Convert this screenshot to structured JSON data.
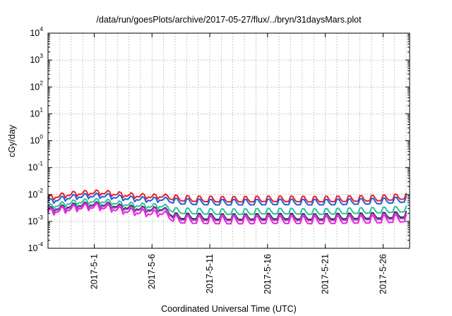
{
  "chart_data": {
    "type": "line",
    "title": "/data/run/goesPlots/archive/2017-05-27/flux/../bryn/31daysMars.plot",
    "xlabel": "Coordinated Universal Time (UTC)",
    "ylabel": "cGy/day",
    "yscale": "log",
    "ylim": [
      0.0001,
      10000
    ],
    "xlim": [
      "2017-04-27",
      "2017-05-28"
    ],
    "grid": true,
    "y_ticks": [
      {
        "base": "10",
        "exp": "-4"
      },
      {
        "base": "10",
        "exp": "-3"
      },
      {
        "base": "10",
        "exp": "-2"
      },
      {
        "base": "10",
        "exp": "-1"
      },
      {
        "base": "10",
        "exp": "0"
      },
      {
        "base": "10",
        "exp": "1"
      },
      {
        "base": "10",
        "exp": "2"
      },
      {
        "base": "10",
        "exp": "3"
      },
      {
        "base": "10",
        "exp": "4"
      }
    ],
    "x_tick_labels": [
      "2017-5-1",
      "2017-5-6",
      "2017-5-11",
      "2017-5-16",
      "2017-5-21",
      "2017-5-26"
    ],
    "x_tick_dates": [
      "2017-05-01",
      "2017-05-06",
      "2017-05-11",
      "2017-05-16",
      "2017-05-21",
      "2017-05-26"
    ],
    "series": [
      {
        "color": "#e8202a",
        "x": [
          "2017-04-27",
          "2017-04-28",
          "2017-04-29",
          "2017-04-30",
          "2017-05-01",
          "2017-05-02",
          "2017-05-03",
          "2017-05-04",
          "2017-05-05",
          "2017-05-06",
          "2017-05-07",
          "2017-05-08",
          "2017-05-10",
          "2017-05-12",
          "2017-05-14",
          "2017-05-16",
          "2017-05-18",
          "2017-05-20",
          "2017-05-22",
          "2017-05-24",
          "2017-05-26",
          "2017-05-28"
        ],
        "values": [
          0.0075,
          0.009,
          0.0105,
          0.0115,
          0.012,
          0.0118,
          0.0105,
          0.0095,
          0.009,
          0.0085,
          0.009,
          0.0065,
          0.006,
          0.0058,
          0.0058,
          0.006,
          0.006,
          0.0058,
          0.006,
          0.0062,
          0.0065,
          0.0075
        ]
      },
      {
        "color": "#1f5fdb",
        "x": [
          "2017-04-27",
          "2017-04-28",
          "2017-04-29",
          "2017-04-30",
          "2017-05-01",
          "2017-05-02",
          "2017-05-03",
          "2017-05-04",
          "2017-05-05",
          "2017-05-06",
          "2017-05-07",
          "2017-05-08",
          "2017-05-10",
          "2017-05-12",
          "2017-05-14",
          "2017-05-16",
          "2017-05-18",
          "2017-05-20",
          "2017-05-22",
          "2017-05-24",
          "2017-05-26",
          "2017-05-28"
        ],
        "values": [
          0.0055,
          0.0068,
          0.008,
          0.0088,
          0.0092,
          0.009,
          0.008,
          0.0072,
          0.0068,
          0.0064,
          0.0068,
          0.005,
          0.0046,
          0.0045,
          0.0045,
          0.0046,
          0.0046,
          0.0045,
          0.0046,
          0.0048,
          0.005,
          0.0058
        ]
      },
      {
        "color": "#2bbf9e",
        "x": [
          "2017-04-27",
          "2017-04-28",
          "2017-04-29",
          "2017-04-30",
          "2017-05-01",
          "2017-05-02",
          "2017-05-03",
          "2017-05-04",
          "2017-05-05",
          "2017-05-06",
          "2017-05-07",
          "2017-05-08",
          "2017-05-10",
          "2017-05-12",
          "2017-05-14",
          "2017-05-16",
          "2017-05-18",
          "2017-05-20",
          "2017-05-22",
          "2017-05-24",
          "2017-05-26",
          "2017-05-28"
        ],
        "values": [
          0.0035,
          0.0042,
          0.005,
          0.0055,
          0.0058,
          0.0056,
          0.0048,
          0.0043,
          0.004,
          0.0037,
          0.0039,
          0.0022,
          0.0021,
          0.002,
          0.002,
          0.0021,
          0.0021,
          0.002,
          0.0021,
          0.0022,
          0.0023,
          0.0025
        ]
      },
      {
        "color": "#2a2a2a",
        "x": [
          "2017-04-27",
          "2017-04-28",
          "2017-04-29",
          "2017-04-30",
          "2017-05-01",
          "2017-05-02",
          "2017-05-03",
          "2017-05-04",
          "2017-05-05",
          "2017-05-06",
          "2017-05-07",
          "2017-05-08",
          "2017-05-10",
          "2017-05-12",
          "2017-05-14",
          "2017-05-16",
          "2017-05-18",
          "2017-05-20",
          "2017-05-22",
          "2017-05-24",
          "2017-05-26",
          "2017-05-28"
        ],
        "values": [
          0.0028,
          0.0032,
          0.0038,
          0.0042,
          0.0044,
          0.0043,
          0.0037,
          0.0033,
          0.003,
          0.0028,
          0.003,
          0.0014,
          0.00135,
          0.0013,
          0.0013,
          0.00135,
          0.00135,
          0.0013,
          0.00135,
          0.0014,
          0.00145,
          0.0016
        ]
      },
      {
        "color": "#9a4fd0",
        "x": [
          "2017-04-27",
          "2017-04-28",
          "2017-04-29",
          "2017-04-30",
          "2017-05-01",
          "2017-05-02",
          "2017-05-03",
          "2017-05-04",
          "2017-05-05",
          "2017-05-06",
          "2017-05-07",
          "2017-05-08",
          "2017-05-10",
          "2017-05-12",
          "2017-05-14",
          "2017-05-16",
          "2017-05-18",
          "2017-05-20",
          "2017-05-22",
          "2017-05-24",
          "2017-05-26",
          "2017-05-28"
        ],
        "values": [
          0.0026,
          0.003,
          0.0035,
          0.0039,
          0.0041,
          0.004,
          0.0034,
          0.003,
          0.0028,
          0.0026,
          0.0028,
          0.00125,
          0.0012,
          0.00118,
          0.00118,
          0.0012,
          0.0012,
          0.00118,
          0.0012,
          0.00125,
          0.0013,
          0.0014
        ]
      },
      {
        "color": "#ee1fe0",
        "x": [
          "2017-04-27",
          "2017-04-28",
          "2017-04-29",
          "2017-04-30",
          "2017-05-01",
          "2017-05-02",
          "2017-05-03",
          "2017-05-04",
          "2017-05-05",
          "2017-05-06",
          "2017-05-07",
          "2017-05-08",
          "2017-05-10",
          "2017-05-12",
          "2017-05-14",
          "2017-05-16",
          "2017-05-18",
          "2017-05-20",
          "2017-05-22",
          "2017-05-24",
          "2017-05-26",
          "2017-05-28"
        ],
        "values": [
          0.0022,
          0.0026,
          0.003,
          0.0034,
          0.0036,
          0.0034,
          0.0028,
          0.0024,
          0.0022,
          0.002,
          0.0021,
          0.001,
          0.00095,
          0.00092,
          0.00092,
          0.00095,
          0.00095,
          0.00092,
          0.00095,
          0.00098,
          0.001,
          0.0011
        ]
      }
    ]
  }
}
